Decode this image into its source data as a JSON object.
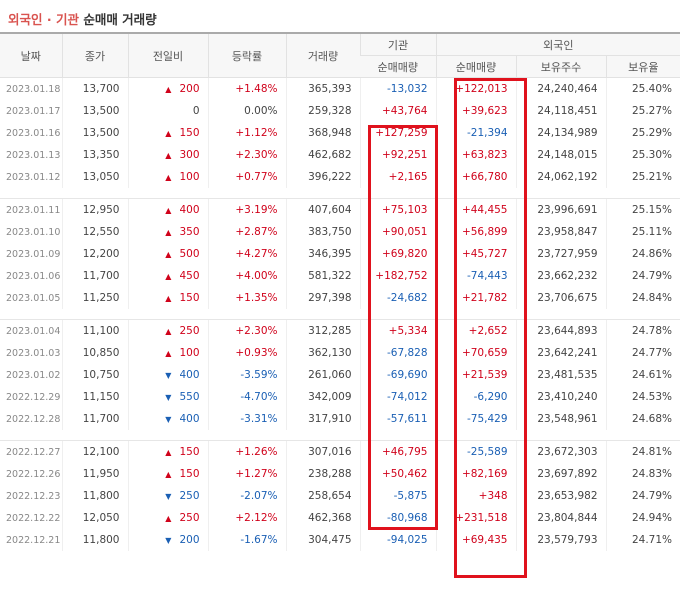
{
  "title": {
    "part1": "외국인 · 기관",
    "part2": "순매매 거래량"
  },
  "headers": {
    "date": "날짜",
    "close": "종가",
    "change": "전일비",
    "rate": "등락률",
    "volume": "거래량",
    "inst_group": "기관",
    "inst_net": "순매매량",
    "foreign_group": "외국인",
    "foreign_net": "순매매량",
    "foreign_shares": "보유주수",
    "foreign_ratio": "보유율"
  },
  "colors": {
    "up": "#d0021b",
    "down": "#1a5fb4",
    "highlight": "#e0121d"
  },
  "groups": [
    [
      {
        "date": "2023.01.18",
        "close": "13,700",
        "dir": "up",
        "change": "200",
        "rate": "+1.48%",
        "volume": "365,393",
        "inst": "-13,032",
        "foreign": "+122,013",
        "shares": "24,240,464",
        "ratio": "25.40%"
      },
      {
        "date": "2023.01.17",
        "close": "13,500",
        "dir": "none",
        "change": "0",
        "rate": "0.00%",
        "volume": "259,328",
        "inst": "+43,764",
        "foreign": "+39,623",
        "shares": "24,118,451",
        "ratio": "25.27%"
      },
      {
        "date": "2023.01.16",
        "close": "13,500",
        "dir": "up",
        "change": "150",
        "rate": "+1.12%",
        "volume": "368,948",
        "inst": "+127,259",
        "foreign": "-21,394",
        "shares": "24,134,989",
        "ratio": "25.29%"
      },
      {
        "date": "2023.01.13",
        "close": "13,350",
        "dir": "up",
        "change": "300",
        "rate": "+2.30%",
        "volume": "462,682",
        "inst": "+92,251",
        "foreign": "+63,823",
        "shares": "24,148,015",
        "ratio": "25.30%"
      },
      {
        "date": "2023.01.12",
        "close": "13,050",
        "dir": "up",
        "change": "100",
        "rate": "+0.77%",
        "volume": "396,222",
        "inst": "+2,165",
        "foreign": "+66,780",
        "shares": "24,062,192",
        "ratio": "25.21%"
      }
    ],
    [
      {
        "date": "2023.01.11",
        "close": "12,950",
        "dir": "up",
        "change": "400",
        "rate": "+3.19%",
        "volume": "407,604",
        "inst": "+75,103",
        "foreign": "+44,455",
        "shares": "23,996,691",
        "ratio": "25.15%"
      },
      {
        "date": "2023.01.10",
        "close": "12,550",
        "dir": "up",
        "change": "350",
        "rate": "+2.87%",
        "volume": "383,750",
        "inst": "+90,051",
        "foreign": "+56,899",
        "shares": "23,958,847",
        "ratio": "25.11%"
      },
      {
        "date": "2023.01.09",
        "close": "12,200",
        "dir": "up",
        "change": "500",
        "rate": "+4.27%",
        "volume": "346,395",
        "inst": "+69,820",
        "foreign": "+45,727",
        "shares": "23,727,959",
        "ratio": "24.86%"
      },
      {
        "date": "2023.01.06",
        "close": "11,700",
        "dir": "up",
        "change": "450",
        "rate": "+4.00%",
        "volume": "581,322",
        "inst": "+182,752",
        "foreign": "-74,443",
        "shares": "23,662,232",
        "ratio": "24.79%"
      },
      {
        "date": "2023.01.05",
        "close": "11,250",
        "dir": "up",
        "change": "150",
        "rate": "+1.35%",
        "volume": "297,398",
        "inst": "-24,682",
        "foreign": "+21,782",
        "shares": "23,706,675",
        "ratio": "24.84%"
      }
    ],
    [
      {
        "date": "2023.01.04",
        "close": "11,100",
        "dir": "up",
        "change": "250",
        "rate": "+2.30%",
        "volume": "312,285",
        "inst": "+5,334",
        "foreign": "+2,652",
        "shares": "23,644,893",
        "ratio": "24.78%"
      },
      {
        "date": "2023.01.03",
        "close": "10,850",
        "dir": "up",
        "change": "100",
        "rate": "+0.93%",
        "volume": "362,130",
        "inst": "-67,828",
        "foreign": "+70,659",
        "shares": "23,642,241",
        "ratio": "24.77%"
      },
      {
        "date": "2023.01.02",
        "close": "10,750",
        "dir": "down",
        "change": "400",
        "rate": "-3.59%",
        "volume": "261,060",
        "inst": "-69,690",
        "foreign": "+21,539",
        "shares": "23,481,535",
        "ratio": "24.61%"
      },
      {
        "date": "2022.12.29",
        "close": "11,150",
        "dir": "down",
        "change": "550",
        "rate": "-4.70%",
        "volume": "342,009",
        "inst": "-74,012",
        "foreign": "-6,290",
        "shares": "23,410,240",
        "ratio": "24.53%"
      },
      {
        "date": "2022.12.28",
        "close": "11,700",
        "dir": "down",
        "change": "400",
        "rate": "-3.31%",
        "volume": "317,910",
        "inst": "-57,611",
        "foreign": "-75,429",
        "shares": "23,548,961",
        "ratio": "24.68%"
      }
    ],
    [
      {
        "date": "2022.12.27",
        "close": "12,100",
        "dir": "up",
        "change": "150",
        "rate": "+1.26%",
        "volume": "307,016",
        "inst": "+46,795",
        "foreign": "-25,589",
        "shares": "23,672,303",
        "ratio": "24.81%"
      },
      {
        "date": "2022.12.26",
        "close": "11,950",
        "dir": "up",
        "change": "150",
        "rate": "+1.27%",
        "volume": "238,288",
        "inst": "+50,462",
        "foreign": "+82,169",
        "shares": "23,697,892",
        "ratio": "24.83%"
      },
      {
        "date": "2022.12.23",
        "close": "11,800",
        "dir": "down",
        "change": "250",
        "rate": "-2.07%",
        "volume": "258,654",
        "inst": "-5,875",
        "foreign": "+348",
        "shares": "23,653,982",
        "ratio": "24.79%"
      },
      {
        "date": "2022.12.22",
        "close": "12,050",
        "dir": "up",
        "change": "250",
        "rate": "+2.12%",
        "volume": "462,368",
        "inst": "-80,968",
        "foreign": "+231,518",
        "shares": "23,804,844",
        "ratio": "24.94%"
      },
      {
        "date": "2022.12.21",
        "close": "11,800",
        "dir": "down",
        "change": "200",
        "rate": "-1.67%",
        "volume": "304,475",
        "inst": "-94,025",
        "foreign": "+69,435",
        "shares": "23,579,793",
        "ratio": "24.71%"
      }
    ]
  ]
}
